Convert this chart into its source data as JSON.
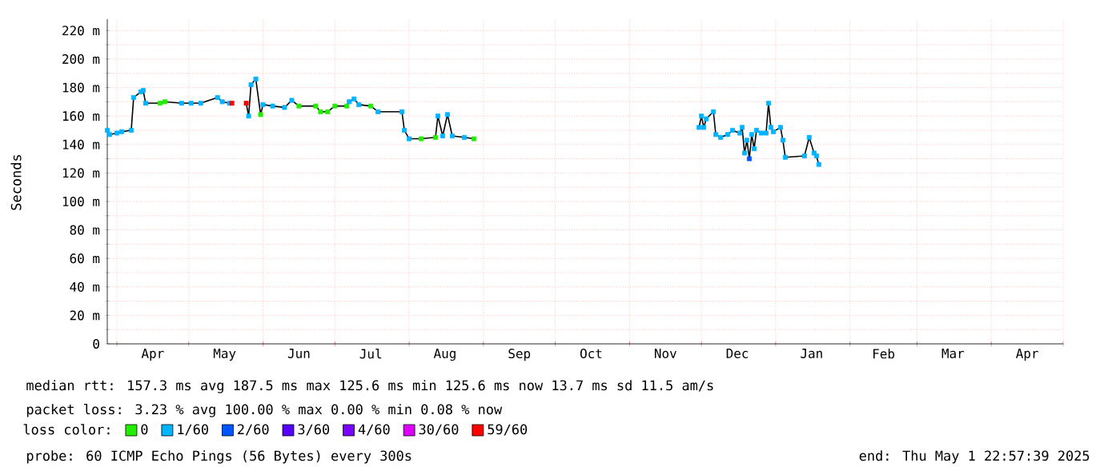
{
  "chart_data": {
    "type": "scatter",
    "ylabel": "Seconds",
    "legend_title": "loss color:",
    "legend": "bottom",
    "grid": true,
    "marker": "square",
    "xlim": [
      "2024-03-28",
      "2025-05-01"
    ],
    "ylim": [
      0,
      228
    ],
    "xticks": [
      {
        "value": "2024-04-01",
        "label": null
      },
      {
        "value": "2024-05-01",
        "label": null
      },
      {
        "value": "2024-06-01",
        "label": null
      },
      {
        "value": "2024-07-01",
        "label": null
      },
      {
        "value": "2024-08-01",
        "label": null
      },
      {
        "value": "2024-09-01",
        "label": null
      },
      {
        "value": "2024-10-01",
        "label": null
      },
      {
        "value": "2024-11-01",
        "label": null
      },
      {
        "value": "2024-12-01",
        "label": null
      },
      {
        "value": "2025-01-01",
        "label": null
      },
      {
        "value": "2025-02-01",
        "label": null
      },
      {
        "value": "2025-03-01",
        "label": null
      },
      {
        "value": "2025-04-01",
        "label": null
      },
      {
        "value": "2025-05-01",
        "label": null
      },
      {
        "value": "2024-04-16",
        "label": "Apr"
      },
      {
        "value": "2024-05-16",
        "label": "May"
      },
      {
        "value": "2024-06-16",
        "label": "Jun"
      },
      {
        "value": "2024-07-16",
        "label": "Jul"
      },
      {
        "value": "2024-08-16",
        "label": "Aug"
      },
      {
        "value": "2024-09-16",
        "label": "Sep"
      },
      {
        "value": "2024-10-16",
        "label": "Oct"
      },
      {
        "value": "2024-11-16",
        "label": "Nov"
      },
      {
        "value": "2024-12-16",
        "label": "Dec"
      },
      {
        "value": "2025-01-16",
        "label": "Jan"
      },
      {
        "value": "2025-02-15",
        "label": "Feb"
      },
      {
        "value": "2025-03-16",
        "label": "Mar"
      },
      {
        "value": "2025-04-16",
        "label": "Apr"
      }
    ],
    "yticks": [
      0,
      {
        "value": 10,
        "label": null
      },
      {
        "value": 20,
        "label": "20 m"
      },
      {
        "value": 30,
        "label": null
      },
      {
        "value": 40,
        "label": "40 m"
      },
      {
        "value": 50,
        "label": null
      },
      {
        "value": 60,
        "label": "60 m"
      },
      {
        "value": 70,
        "label": null
      },
      {
        "value": 80,
        "label": "80 m"
      },
      {
        "value": 90,
        "label": null
      },
      {
        "value": 100,
        "label": "100 m"
      },
      {
        "value": 110,
        "label": null
      },
      {
        "value": 120,
        "label": "120 m"
      },
      {
        "value": 130,
        "label": null
      },
      {
        "value": 140,
        "label": "140 m"
      },
      {
        "value": 150,
        "label": null
      },
      {
        "value": 160,
        "label": "160 m"
      },
      {
        "value": 170,
        "label": null
      },
      {
        "value": 180,
        "label": "180 m"
      },
      {
        "value": 190,
        "label": null
      },
      {
        "value": 200,
        "label": "200 m"
      },
      {
        "value": 210,
        "label": null
      },
      {
        "value": 220,
        "label": "220 m"
      }
    ],
    "annotations": [
      "median rtt:  157.3 ms avg  187.5 ms max  125.6 ms min  125.6 ms now  13.7 ms sd  11.5   am/s",
      "packet loss: 3.23 % avg  100.00 % max  0.00 % min  0.08 % now",
      "probe:       60 ICMP Echo Pings (56 Bytes) every 300s",
      "end: Thu May  1 22:57:39 2025"
    ],
    "series": [
      {
        "type": "line",
        "marker": "none",
        "color": "#000000",
        "x": [
          "2024-03-28",
          "2024-03-29",
          "2024-04-01",
          "2024-04-03",
          "2024-04-07",
          "2024-04-08",
          "2024-04-11",
          "2024-04-12",
          "2024-04-13",
          "2024-04-19",
          "2024-04-21",
          "2024-04-28",
          "2024-05-02",
          "2024-05-06",
          "2024-05-13",
          "2024-05-15",
          "2024-05-18",
          "2024-05-19",
          "2024-05-22",
          "2024-05-25",
          "2024-05-26",
          "2024-05-27",
          "2024-05-29",
          "2024-05-31",
          "2024-06-01",
          "2024-06-05",
          "2024-06-10",
          "2024-06-13",
          "2024-06-16",
          "2024-06-23",
          "2024-06-25",
          "2024-06-28",
          "2024-07-01",
          "2024-07-06",
          "2024-07-07",
          "2024-07-09",
          "2024-07-11",
          "2024-07-16",
          "2024-07-19",
          "2024-07-29",
          "2024-07-30",
          "2024-08-01",
          "2024-08-06",
          "2024-08-12",
          "2024-08-13",
          "2024-08-15",
          "2024-08-17",
          "2024-08-19",
          "2024-08-24",
          "2024-08-28",
          "2024-10-15",
          "2024-11-30",
          "2024-12-01",
          "2024-12-02",
          "2024-12-03",
          "2024-12-06",
          "2024-12-07",
          "2024-12-09",
          "2024-12-12",
          "2024-12-14",
          "2024-12-17",
          "2024-12-18",
          "2024-12-19",
          "2024-12-20",
          "2024-12-21",
          "2024-12-22",
          "2024-12-23",
          "2024-12-24",
          "2024-12-26",
          "2024-12-28",
          "2024-12-29",
          "2024-12-30",
          "2024-12-31",
          "2025-01-03",
          "2025-01-04",
          "2025-01-05",
          "2025-01-13",
          "2025-01-15",
          "2025-01-17",
          "2025-01-18",
          "2025-01-19"
        ],
        "values": [
          150,
          147,
          148,
          149,
          150,
          173,
          177,
          178,
          169,
          169,
          170,
          169,
          169,
          169,
          173,
          170,
          169,
          169,
          null,
          169,
          160,
          182,
          186,
          161,
          168,
          167,
          166,
          171,
          167,
          167,
          163,
          163,
          167,
          167,
          170,
          172,
          168,
          167,
          163,
          163,
          150,
          144,
          144,
          145,
          160,
          146,
          161,
          146,
          145,
          144,
          null,
          152,
          160,
          152,
          158,
          163,
          147,
          145,
          147,
          150,
          148,
          152,
          134,
          143,
          130,
          147,
          137,
          150,
          148,
          148,
          169,
          152,
          149,
          152,
          143,
          131,
          132,
          145,
          134,
          132,
          126
        ]
      },
      {
        "name": "0",
        "color": "#22ee00",
        "x": [
          "2024-04-19",
          "2024-04-21",
          "2024-05-31",
          "2024-06-16",
          "2024-06-23",
          "2024-06-25",
          "2024-06-28",
          "2024-07-01",
          "2024-07-06",
          "2024-07-16",
          "2024-08-06",
          "2024-08-12",
          "2024-08-28"
        ],
        "values": [
          169,
          170,
          161,
          167,
          167,
          163,
          163,
          167,
          167,
          167,
          144,
          145,
          144
        ]
      },
      {
        "name": "1/60",
        "color": "#00b4ff",
        "x": [
          "2024-03-28",
          "2024-03-29",
          "2024-04-01",
          "2024-04-03",
          "2024-04-07",
          "2024-04-08",
          "2024-04-11",
          "2024-04-12",
          "2024-04-13",
          "2024-04-28",
          "2024-05-02",
          "2024-05-06",
          "2024-05-13",
          "2024-05-15",
          "2024-05-18",
          "2024-05-26",
          "2024-05-27",
          "2024-05-29",
          "2024-06-01",
          "2024-06-05",
          "2024-06-10",
          "2024-06-13",
          "2024-07-07",
          "2024-07-09",
          "2024-07-11",
          "2024-07-19",
          "2024-07-29",
          "2024-07-30",
          "2024-08-01",
          "2024-08-13",
          "2024-08-15",
          "2024-08-17",
          "2024-08-19",
          "2024-08-24",
          "2024-11-30",
          "2024-12-01",
          "2024-12-02",
          "2024-12-03",
          "2024-12-06",
          "2024-12-07",
          "2024-12-09",
          "2024-12-12",
          "2024-12-14",
          "2024-12-17",
          "2024-12-18",
          "2024-12-19",
          "2024-12-20",
          "2024-12-22",
          "2024-12-23",
          "2024-12-24",
          "2024-12-26",
          "2024-12-28",
          "2024-12-29",
          "2024-12-30",
          "2024-12-31",
          "2025-01-03",
          "2025-01-04",
          "2025-01-05",
          "2025-01-13",
          "2025-01-15",
          "2025-01-17",
          "2025-01-18",
          "2025-01-19"
        ],
        "values": [
          150,
          147,
          148,
          149,
          150,
          173,
          177,
          178,
          169,
          169,
          169,
          169,
          173,
          170,
          169,
          160,
          182,
          186,
          168,
          167,
          166,
          171,
          170,
          172,
          168,
          163,
          163,
          150,
          144,
          160,
          146,
          161,
          146,
          145,
          152,
          160,
          152,
          158,
          163,
          147,
          145,
          147,
          150,
          148,
          152,
          134,
          143,
          147,
          137,
          150,
          148,
          148,
          169,
          152,
          149,
          152,
          143,
          131,
          132,
          145,
          134,
          132,
          126
        ]
      },
      {
        "name": "2/60",
        "color": "#0055ff",
        "x": [
          "2024-12-21"
        ],
        "values": [
          130
        ]
      },
      {
        "name": "3/60",
        "color": "#5500ff"
      },
      {
        "name": "4/60",
        "color": "#7a00ff"
      },
      {
        "name": "30/60",
        "color": "#dd00ff"
      },
      {
        "name": "59/60",
        "color": "#ff0000",
        "x": [
          "2024-05-19",
          "2024-05-25"
        ],
        "values": [
          169,
          169
        ]
      }
    ]
  }
}
